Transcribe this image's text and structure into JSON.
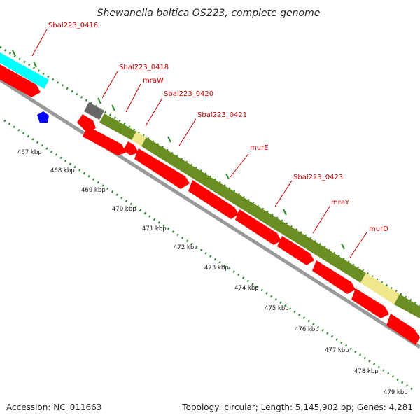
{
  "title": "Shewanella baltica OS223, complete genome",
  "accession": "Accession: NC_011663",
  "summary": "Topology: circular; Length: 5,145,902 bp; Genes: 4,281",
  "gene_labels": [
    {
      "id": "0416",
      "text": "Sbal223_0416"
    },
    {
      "id": "0418",
      "text": "Sbal223_0418"
    },
    {
      "id": "mraW",
      "text": "mraW"
    },
    {
      "id": "0420",
      "text": "Sbal223_0420"
    },
    {
      "id": "0421",
      "text": "Sbal223_0421"
    },
    {
      "id": "murE",
      "text": "murE"
    },
    {
      "id": "0423",
      "text": "Sbal223_0423"
    },
    {
      "id": "mraY",
      "text": "mraY"
    },
    {
      "id": "murD",
      "text": "murD"
    }
  ],
  "position_labels": [
    "467 kbp",
    "468 kbp",
    "469 kbp",
    "470 kbp",
    "471 kbp",
    "472 kbp",
    "473 kbp",
    "474 kbp",
    "475 kbp",
    "476 kbp",
    "477 kbp",
    "478 kbp",
    "479 kbp"
  ],
  "colors": {
    "cds_forward": "#ff0000",
    "feature_olive": "#6b8e23",
    "feature_cyan": "#00ffff",
    "feature_yellow": "#f0e68c",
    "feature_gray": "#666666",
    "marker_blue": "#0000ff",
    "dotted_ring": "#2e8b2e",
    "backbone": "#999999",
    "label_red": "#cc0000"
  }
}
